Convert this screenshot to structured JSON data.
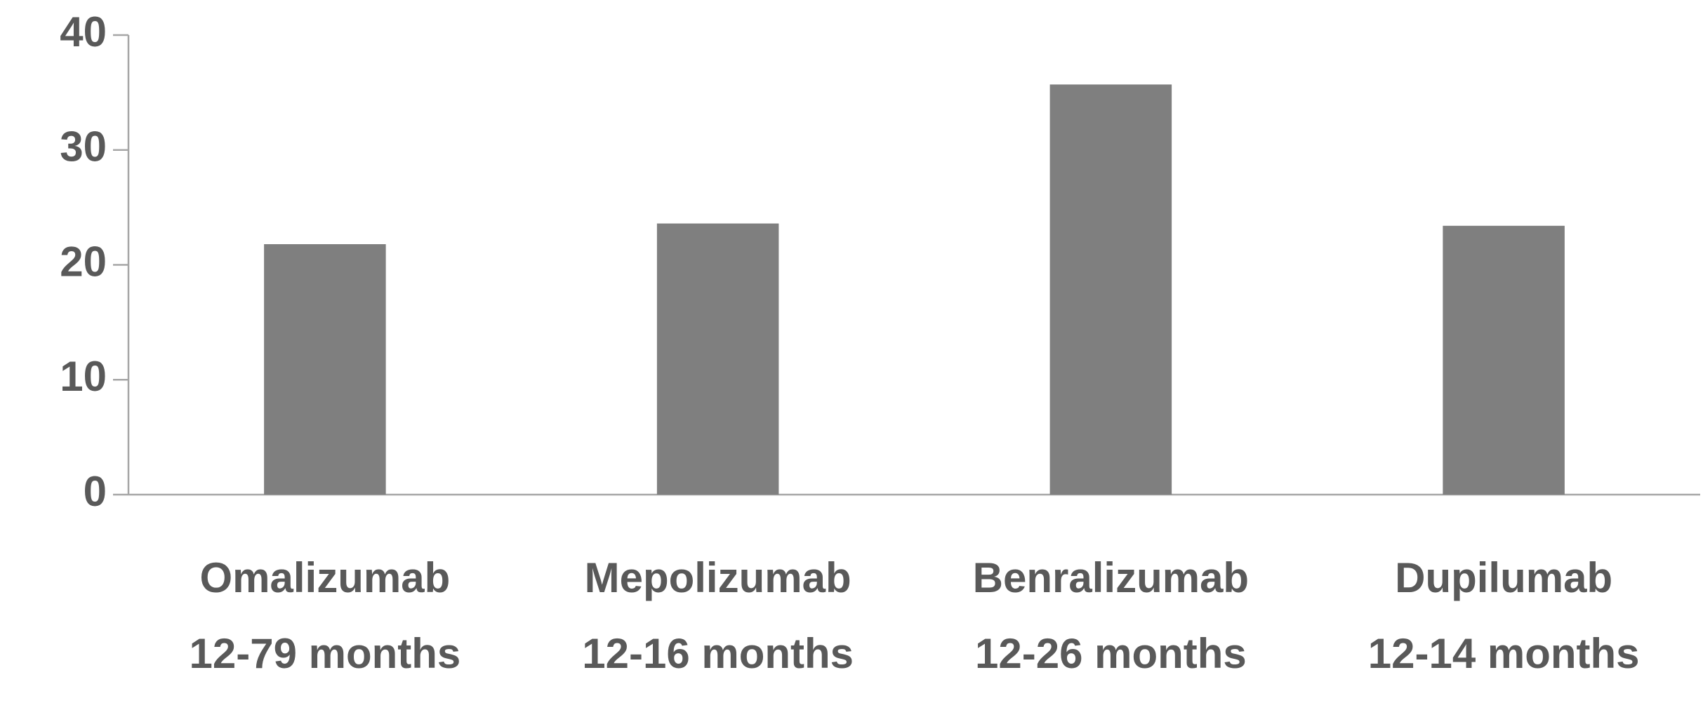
{
  "chart_data": {
    "type": "bar",
    "categories": [
      [
        "Omalizumab",
        "12-79 months"
      ],
      [
        "Mepolizumab",
        "12-16 months"
      ],
      [
        "Benralizumab",
        "12-26 months"
      ],
      [
        "Dupilumab",
        "12-14 months"
      ]
    ],
    "values": [
      21.8,
      23.6,
      35.7,
      23.4
    ],
    "color": "#7f7f7f",
    "ylim": [
      0,
      40
    ],
    "yticks": [
      0,
      10,
      20,
      30,
      40
    ],
    "grid": false
  }
}
